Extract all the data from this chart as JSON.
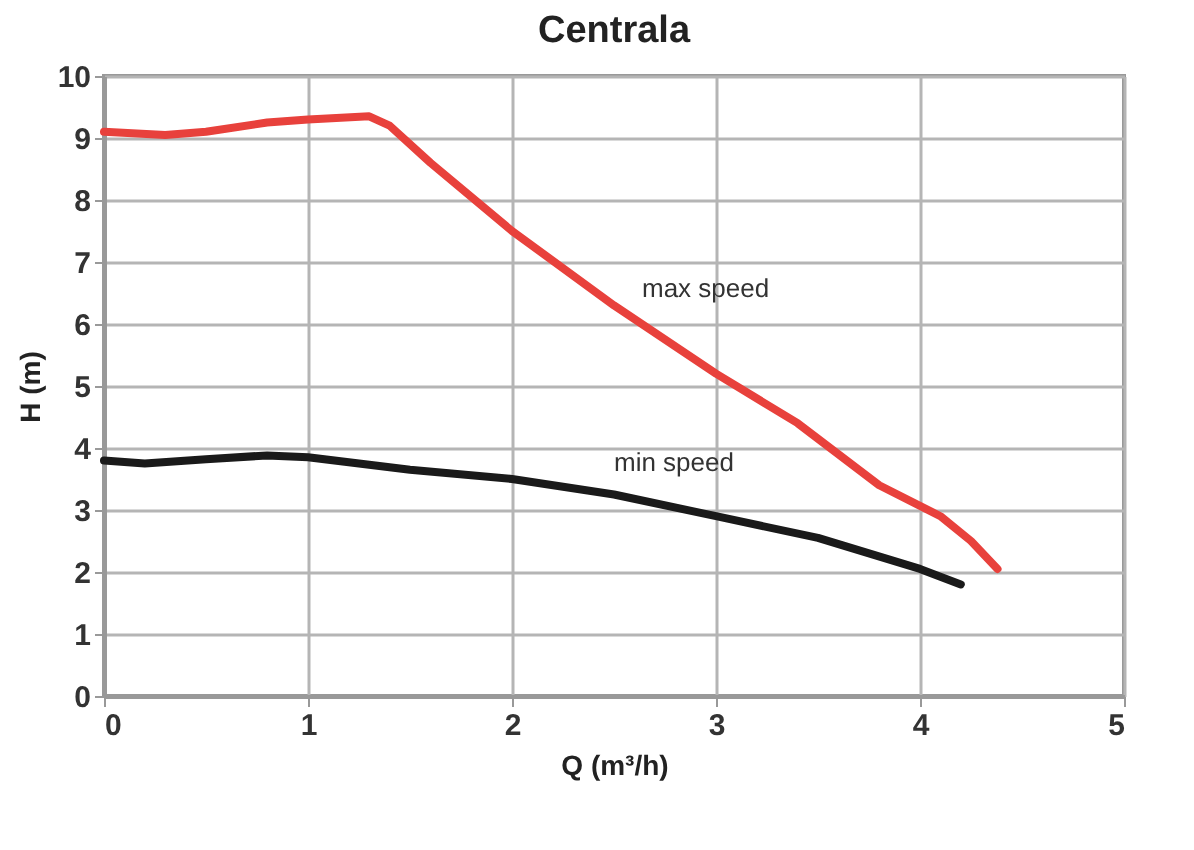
{
  "chart_data": {
    "type": "line",
    "title": "Centrala",
    "xlabel": "Q (m³/h)",
    "ylabel": "H (m)",
    "xlim": [
      0,
      5
    ],
    "xticks": [
      0,
      1,
      2,
      3,
      4,
      5
    ],
    "ylim": [
      0,
      10
    ],
    "yticks": [
      0,
      1,
      2,
      3,
      4,
      5,
      6,
      7,
      8,
      9,
      10
    ],
    "grid": true,
    "legend": false,
    "marker": "none",
    "line_style": "solid",
    "series": [
      {
        "name": "max speed",
        "color": "#e8413c",
        "x": [
          0,
          0.3,
          0.5,
          0.8,
          1.0,
          1.3,
          1.4,
          1.6,
          2.0,
          2.5,
          3.0,
          3.4,
          3.8,
          4.1,
          4.25,
          4.38
        ],
        "values": [
          9.1,
          9.05,
          9.1,
          9.25,
          9.3,
          9.35,
          9.2,
          8.6,
          7.5,
          6.3,
          5.2,
          4.4,
          3.4,
          2.9,
          2.5,
          2.05
        ]
      },
      {
        "name": "min speed",
        "color": "#1a1a1a",
        "x": [
          0,
          0.2,
          0.5,
          0.8,
          1.0,
          1.5,
          2.0,
          2.5,
          3.0,
          3.5,
          4.0,
          4.2
        ],
        "values": [
          3.8,
          3.75,
          3.82,
          3.88,
          3.85,
          3.65,
          3.5,
          3.25,
          2.9,
          2.55,
          2.05,
          1.8
        ]
      }
    ]
  }
}
